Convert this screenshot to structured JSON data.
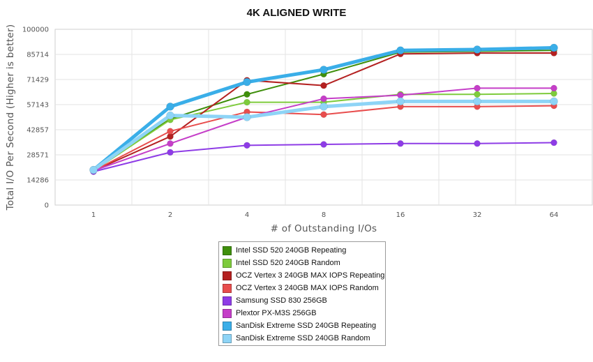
{
  "chart_data": {
    "type": "line",
    "title": "4K ALIGNED WRITE",
    "xlabel": "# of Outstanding I/Os",
    "ylabel": "Total I/O Per Second (Higher is better)",
    "categories": [
      "1",
      "2",
      "4",
      "8",
      "16",
      "32",
      "64"
    ],
    "yticks": [
      "0",
      "14286",
      "28571",
      "42857",
      "57143",
      "71429",
      "85714",
      "100000"
    ],
    "ylim": [
      0,
      100000
    ],
    "grid": true,
    "legend_position": "bottom",
    "series": [
      {
        "name": "Intel SSD 520 240GB Repeating",
        "color": "#3f8f0c",
        "values": [
          20000,
          49000,
          63000,
          74500,
          87000,
          87500,
          88000
        ]
      },
      {
        "name": "Intel SSD 520 240GB Random",
        "color": "#7ecb3c",
        "values": [
          19500,
          48500,
          58500,
          58500,
          63000,
          63000,
          63500
        ]
      },
      {
        "name": "OCZ Vertex 3 240GB MAX IOPS Repeating",
        "color": "#b42121",
        "values": [
          19500,
          39000,
          71000,
          68000,
          86000,
          86500,
          86500
        ]
      },
      {
        "name": "OCZ Vertex 3 240GB MAX IOPS Random",
        "color": "#e84d4d",
        "values": [
          19500,
          42000,
          53000,
          51500,
          56000,
          56000,
          56500
        ]
      },
      {
        "name": "Samsung SSD 830 256GB",
        "color": "#8e3ce6",
        "values": [
          19000,
          30000,
          34000,
          34500,
          35000,
          35000,
          35500
        ]
      },
      {
        "name": "Plextor PX-M3S 256GB",
        "color": "#c53ec8",
        "values": [
          19500,
          35000,
          50000,
          60500,
          62500,
          66500,
          66500
        ]
      },
      {
        "name": "SanDisk Extreme SSD 240GB Repeating",
        "color": "#3aaee8",
        "values": [
          20000,
          56000,
          70000,
          77000,
          88000,
          88500,
          89500
        ]
      },
      {
        "name": "SanDisk Extreme SSD 240GB Random",
        "color": "#8ed4f6",
        "values": [
          20000,
          51000,
          50000,
          56000,
          59000,
          59000,
          59000
        ]
      }
    ]
  }
}
